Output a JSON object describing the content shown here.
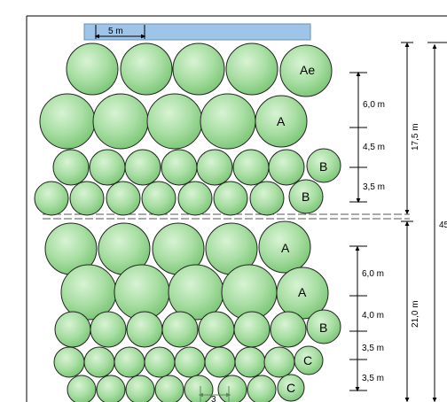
{
  "diagram": {
    "top_scale_label": "5 m",
    "row_labels": [
      "Ae",
      "A",
      "B",
      "B",
      "A",
      "A",
      "B",
      "C",
      "C"
    ],
    "upper_spacings": [
      "6,0 m",
      "4,5 m",
      "3,5 m"
    ],
    "upper_total": "17,5 m",
    "lower_spacings": [
      "6,0 m",
      "4,0 m",
      "3,5 m",
      "3,5 m"
    ],
    "lower_total": "21,0 m",
    "overall_total": "45",
    "bottom_scale_label": "3"
  }
}
